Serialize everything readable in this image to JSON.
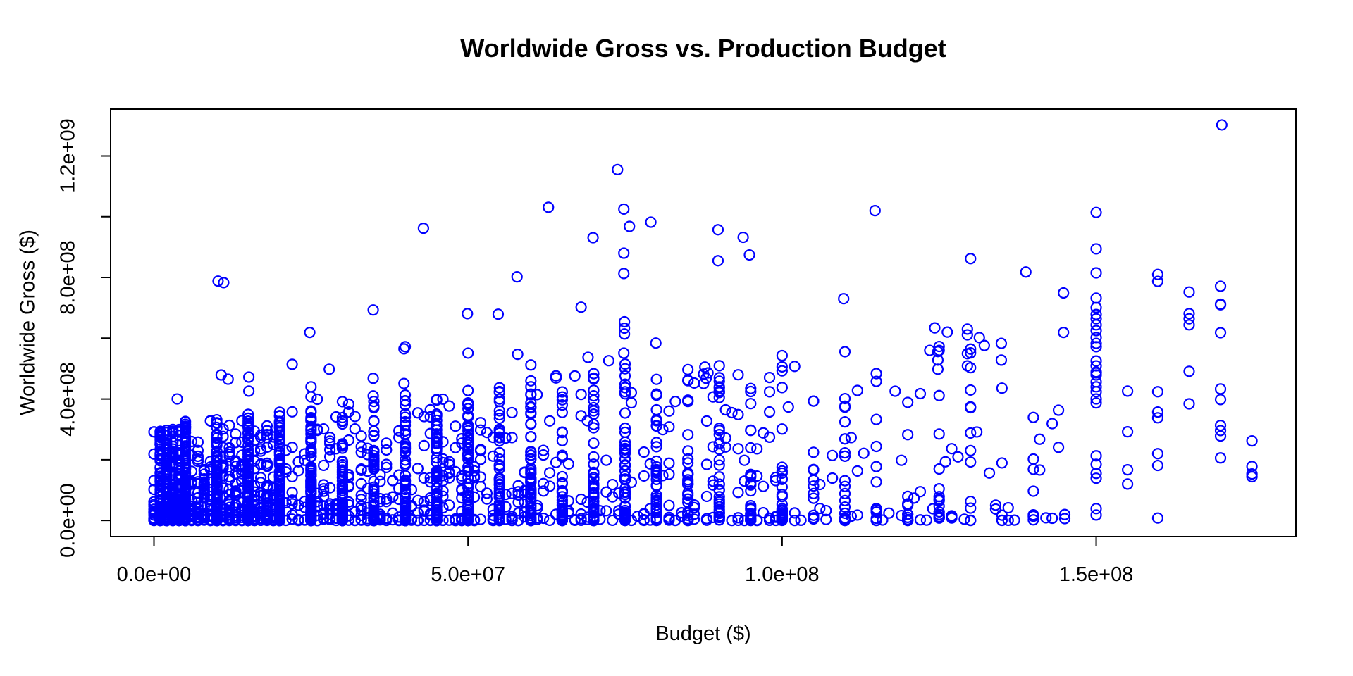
{
  "chart_data": {
    "type": "scatter",
    "title": "Worldwide Gross vs. Production Budget",
    "xlabel": "Budget ($)",
    "ylabel": "Worldwide Gross ($)",
    "units": "millions_of_dollars",
    "xlim": [
      -6.9,
      181.8
    ],
    "ylim": [
      -53,
      1354
    ],
    "x_ticks": [
      0,
      50,
      100,
      150
    ],
    "x_tick_labels": [
      "0.0e+00",
      "5.0e+07",
      "1.0e+08",
      "1.5e+08"
    ],
    "y_ticks": [
      0,
      200,
      400,
      600,
      800,
      1000,
      1200
    ],
    "y_labeled_ticks": [
      0,
      400,
      800,
      1200
    ],
    "y_tick_labels": [
      "0.0e+00",
      "4.0e+08",
      "8.0e+08",
      "1.2e+09"
    ],
    "grid": false,
    "legend": null,
    "marker": {
      "shape": "open-circle",
      "color": "#0000FF",
      "radius_px": 7,
      "stroke_px": 2.2
    },
    "colors": {
      "axis": "#000000",
      "background": "#FFFFFF",
      "text": "#000000"
    },
    "points": [
      [
        170,
        1302
      ],
      [
        73.8,
        1155
      ],
      [
        62.8,
        1031
      ],
      [
        74.8,
        1025
      ],
      [
        114.8,
        1020
      ],
      [
        79.1,
        982
      ],
      [
        75.7,
        968
      ],
      [
        42.9,
        962
      ],
      [
        89.8,
        957
      ],
      [
        93.8,
        932
      ],
      [
        69.9,
        931
      ],
      [
        74.8,
        880
      ],
      [
        94.8,
        874
      ],
      [
        130,
        862
      ],
      [
        89.8,
        855
      ],
      [
        138.8,
        818
      ],
      [
        74.8,
        813
      ],
      [
        159.8,
        810
      ],
      [
        57.8,
        802
      ],
      [
        10.2,
        788
      ],
      [
        11.1,
        783
      ],
      [
        159.8,
        787
      ],
      [
        169.8,
        771
      ],
      [
        164.8,
        752
      ],
      [
        144.8,
        749
      ],
      [
        109.8,
        730
      ],
      [
        169.8,
        712
      ],
      [
        169.8,
        710
      ],
      [
        68,
        702
      ],
      [
        34.9,
        693
      ],
      [
        49.9,
        681
      ],
      [
        164.8,
        681
      ],
      [
        54.8,
        679
      ],
      [
        164.8,
        664
      ],
      [
        74.9,
        654
      ],
      [
        164.8,
        644
      ],
      [
        124.3,
        634
      ],
      [
        74.9,
        633
      ],
      [
        129.5,
        630
      ],
      [
        126.3,
        620
      ],
      [
        24.8,
        619
      ],
      [
        144.8,
        619
      ],
      [
        169.8,
        618
      ],
      [
        74.9,
        614
      ],
      [
        129.5,
        611
      ],
      [
        131.4,
        602
      ],
      [
        134.9,
        583
      ],
      [
        79.9,
        584
      ],
      [
        132.2,
        576
      ],
      [
        40,
        572
      ],
      [
        39.8,
        565
      ],
      [
        123.5,
        560
      ],
      [
        124.8,
        556
      ],
      [
        74.8,
        551
      ],
      [
        50,
        551
      ],
      [
        57.9,
        547
      ],
      [
        129.5,
        549
      ],
      [
        69.1,
        537
      ],
      [
        134.9,
        528
      ],
      [
        124.8,
        528
      ],
      [
        72.4,
        526
      ],
      [
        60,
        512
      ],
      [
        22,
        514
      ],
      [
        87.7,
        505
      ],
      [
        129.5,
        509
      ],
      [
        27.9,
        498
      ],
      [
        124.8,
        498
      ],
      [
        164.8,
        491
      ],
      [
        87.5,
        482
      ],
      [
        88.2,
        486
      ],
      [
        10.7,
        479
      ],
      [
        15.1,
        472
      ],
      [
        87.9,
        468
      ],
      [
        34.9,
        468
      ],
      [
        11.8,
        465
      ],
      [
        87.5,
        451
      ],
      [
        39.8,
        451
      ],
      [
        25,
        440
      ],
      [
        169.8,
        433
      ],
      [
        155,
        426
      ],
      [
        15.1,
        426
      ],
      [
        159.8,
        424
      ],
      [
        34.9,
        410
      ],
      [
        25,
        407
      ],
      [
        3.7,
        400
      ],
      [
        169.8,
        398
      ],
      [
        164.8,
        384
      ],
      [
        159.8,
        357
      ],
      [
        159.8,
        338
      ],
      [
        169.8,
        313
      ],
      [
        155,
        292
      ],
      [
        169.8,
        296
      ],
      [
        169.8,
        278
      ],
      [
        174.8,
        262
      ],
      [
        159.8,
        220
      ],
      [
        169.8,
        206
      ],
      [
        174.8,
        178
      ],
      [
        159.8,
        181
      ],
      [
        155,
        167
      ],
      [
        174.8,
        153
      ],
      [
        174.8,
        144
      ],
      [
        155,
        120
      ],
      [
        159.8,
        8
      ],
      [
        150,
        1014
      ],
      [
        150,
        894
      ],
      [
        150,
        815
      ],
      [
        150,
        732
      ],
      [
        150,
        701
      ],
      [
        150,
        678
      ],
      [
        150,
        664
      ],
      [
        150,
        644
      ],
      [
        150,
        625
      ],
      [
        150,
        602
      ],
      [
        150,
        583
      ],
      [
        150,
        572
      ],
      [
        150,
        525
      ],
      [
        150,
        509
      ],
      [
        150,
        489
      ],
      [
        150,
        486
      ],
      [
        150,
        479
      ],
      [
        150,
        456
      ],
      [
        150,
        440
      ],
      [
        150,
        424
      ],
      [
        150,
        400
      ],
      [
        150,
        387
      ],
      [
        150,
        213
      ],
      [
        150,
        185
      ],
      [
        150,
        155
      ],
      [
        150,
        139
      ],
      [
        150,
        39
      ],
      [
        150,
        18
      ]
    ],
    "cloud": {
      "seed": 1234,
      "power": 2.9,
      "columns": [
        {
          "x": 5,
          "n": 120,
          "cap": 330
        },
        {
          "x": 10,
          "n": 115,
          "cap": 340
        },
        {
          "x": 15,
          "n": 105,
          "cap": 350
        },
        {
          "x": 20,
          "n": 110,
          "cap": 360
        },
        {
          "x": 25,
          "n": 100,
          "cap": 380
        },
        {
          "x": 30,
          "n": 95,
          "cap": 390
        },
        {
          "x": 35,
          "n": 75,
          "cap": 400
        },
        {
          "x": 40,
          "n": 80,
          "cap": 420
        },
        {
          "x": 45,
          "n": 60,
          "cap": 430
        },
        {
          "x": 50,
          "n": 75,
          "cap": 450
        },
        {
          "x": 55,
          "n": 55,
          "cap": 440
        },
        {
          "x": 60,
          "n": 65,
          "cap": 470
        },
        {
          "x": 65,
          "n": 45,
          "cap": 470
        },
        {
          "x": 70,
          "n": 50,
          "cap": 500
        },
        {
          "x": 75,
          "n": 55,
          "cap": 520
        },
        {
          "x": 80,
          "n": 40,
          "cap": 520
        },
        {
          "x": 85,
          "n": 30,
          "cap": 500
        },
        {
          "x": 90,
          "n": 35,
          "cap": 540
        },
        {
          "x": 95,
          "n": 20,
          "cap": 520
        },
        {
          "x": 100,
          "n": 30,
          "cap": 560
        },
        {
          "x": 105,
          "n": 12,
          "cap": 520
        },
        {
          "x": 110,
          "n": 22,
          "cap": 560
        },
        {
          "x": 115,
          "n": 10,
          "cap": 540
        },
        {
          "x": 120,
          "n": 14,
          "cap": 560
        },
        {
          "x": 125,
          "n": 14,
          "cap": 580
        },
        {
          "x": 130,
          "n": 12,
          "cap": 600
        },
        {
          "x": 135,
          "n": 5,
          "cap": 500
        },
        {
          "x": 140,
          "n": 7,
          "cap": 550
        }
      ],
      "bands": [
        {
          "xmin": 0.2,
          "xmax": 4.8,
          "n": 420,
          "cap": 300
        },
        {
          "xmin": 5.2,
          "xmax": 19.8,
          "n": 380,
          "cap": 330
        },
        {
          "xmin": 20.2,
          "xmax": 60,
          "n": 330,
          "cap": 400
        },
        {
          "xmin": 60,
          "xmax": 100,
          "n": 160,
          "cap": 480
        },
        {
          "xmin": 100,
          "xmax": 145,
          "n": 60,
          "cap": 520
        }
      ]
    }
  }
}
